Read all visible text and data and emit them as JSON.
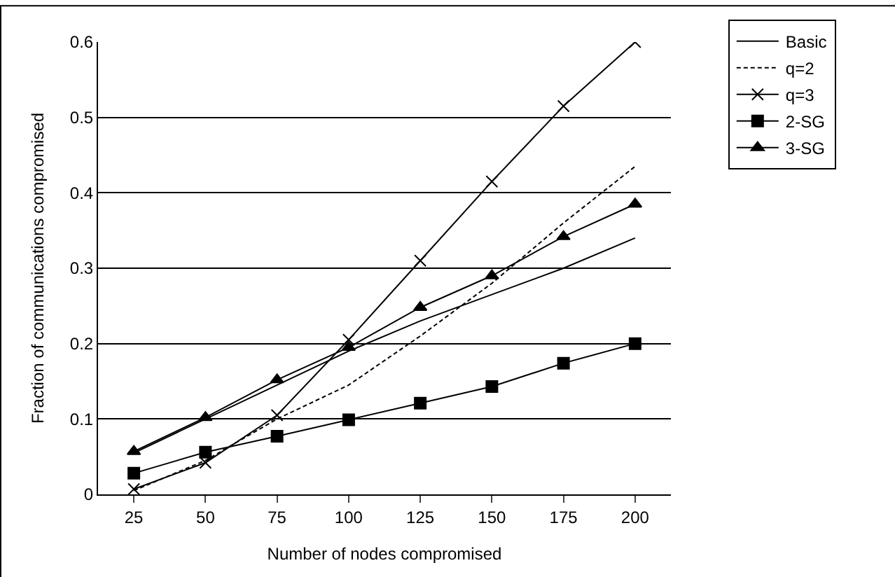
{
  "chart_data": {
    "type": "line",
    "xlabel": "Number of nodes compromised",
    "ylabel": "Fraction of communications compromised",
    "categories": [
      "25",
      "50",
      "75",
      "100",
      "125",
      "150",
      "175",
      "200"
    ],
    "series": [
      {
        "name": "Basic",
        "color": "#000000",
        "marker": "none",
        "line_style": "solid",
        "values": [
          0.055,
          0.1,
          0.145,
          0.19,
          0.23,
          0.265,
          0.3,
          0.34
        ]
      },
      {
        "name": "q=2",
        "color": "#000000",
        "marker": "none",
        "line_style": "dashed",
        "values": [
          0.005,
          0.045,
          0.1,
          0.145,
          0.21,
          0.28,
          0.36,
          0.435
        ]
      },
      {
        "name": "q=3",
        "color": "#000000",
        "marker": "cross",
        "line_style": "solid",
        "values": [
          0.007,
          0.042,
          0.105,
          0.205,
          0.31,
          0.415,
          0.515,
          0.6
        ]
      },
      {
        "name": "2-SG",
        "color": "#000000",
        "marker": "square",
        "line_style": "solid",
        "values": [
          0.028,
          0.056,
          0.077,
          0.099,
          0.121,
          0.143,
          0.174,
          0.2
        ]
      },
      {
        "name": "3-SG",
        "color": "#000000",
        "marker": "triangle",
        "line_style": "solid",
        "values": [
          0.057,
          0.102,
          0.152,
          0.195,
          0.248,
          0.29,
          0.342,
          0.385
        ]
      }
    ],
    "ylim": [
      0,
      0.6
    ],
    "yticks": [
      0,
      0.1,
      0.2,
      0.3,
      0.4,
      0.5,
      0.6
    ],
    "grid": "y",
    "legend": "top right"
  }
}
